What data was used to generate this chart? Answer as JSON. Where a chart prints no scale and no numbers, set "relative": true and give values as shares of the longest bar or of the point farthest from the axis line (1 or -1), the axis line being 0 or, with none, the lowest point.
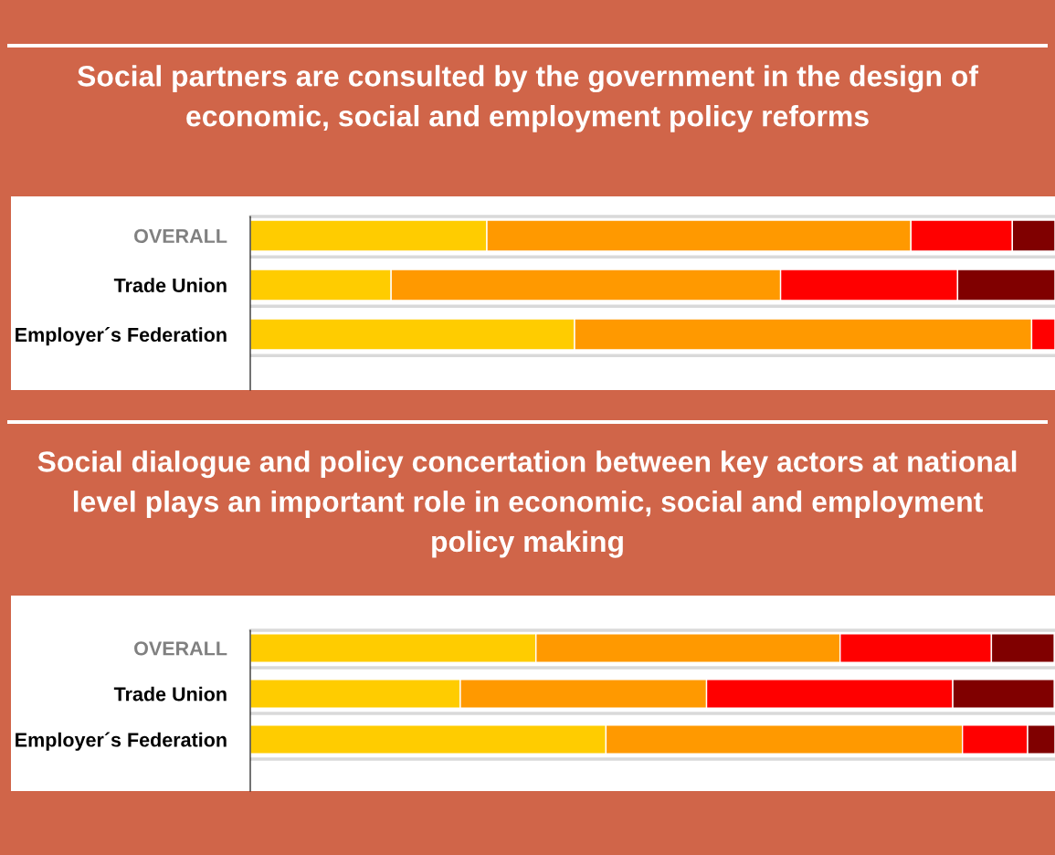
{
  "chart_data": [
    {
      "type": "bar",
      "orientation": "horizontal",
      "stacked": true,
      "relative": true,
      "tick_labels": "y",
      "title": "Social partners are consulted by the government in the design of\neconomic, social and employment policy reforms",
      "categories": [
        "OVERALL",
        "Trade Union",
        "Employer´s Federation"
      ],
      "series": [
        {
          "color": "#ffcc00",
          "values": [
            0.294,
            0.175,
            0.403
          ]
        },
        {
          "color": "#ff9900",
          "values": [
            0.527,
            0.484,
            0.568
          ]
        },
        {
          "color": "#ff0000",
          "values": [
            0.126,
            0.22,
            0.029
          ]
        },
        {
          "color": "#800000",
          "values": [
            0.053,
            0.121,
            null
          ]
        }
      ]
    },
    {
      "type": "bar",
      "orientation": "horizontal",
      "stacked": true,
      "relative": true,
      "tick_labels": "y",
      "title": "Social dialogue and policy concertation between key actors at national\nlevel plays an important role in economic, social and employment\npolicy making",
      "categories": [
        "OVERALL",
        "Trade Union",
        "Employer´s Federation"
      ],
      "series": [
        {
          "color": "#ffcc00",
          "values": [
            0.355,
            0.261,
            0.442
          ]
        },
        {
          "color": "#ff9900",
          "values": [
            0.378,
            0.306,
            0.443
          ]
        },
        {
          "color": "#ff0000",
          "values": [
            0.188,
            0.306,
            0.081
          ]
        },
        {
          "color": "#800000",
          "values": [
            0.078,
            0.126,
            0.034
          ]
        }
      ]
    }
  ]
}
